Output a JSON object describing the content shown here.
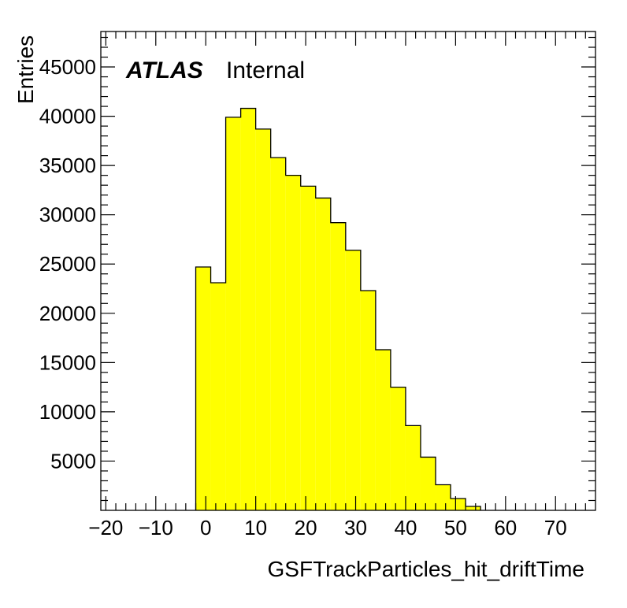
{
  "chart_data": {
    "type": "bar",
    "histogram": true,
    "bin_width": 3,
    "bins": [
      {
        "x0": -2,
        "x1": 1,
        "value": 24700
      },
      {
        "x0": 1,
        "x1": 4,
        "value": 23100
      },
      {
        "x0": 4,
        "x1": 7,
        "value": 39900
      },
      {
        "x0": 7,
        "x1": 10,
        "value": 40800
      },
      {
        "x0": 10,
        "x1": 13,
        "value": 38700
      },
      {
        "x0": 13,
        "x1": 16,
        "value": 35800
      },
      {
        "x0": 16,
        "x1": 19,
        "value": 34000
      },
      {
        "x0": 19,
        "x1": 22,
        "value": 32900
      },
      {
        "x0": 22,
        "x1": 25,
        "value": 31700
      },
      {
        "x0": 25,
        "x1": 28,
        "value": 29200
      },
      {
        "x0": 28,
        "x1": 31,
        "value": 26400
      },
      {
        "x0": 31,
        "x1": 34,
        "value": 22300
      },
      {
        "x0": 34,
        "x1": 37,
        "value": 16300
      },
      {
        "x0": 37,
        "x1": 40,
        "value": 12500
      },
      {
        "x0": 40,
        "x1": 43,
        "value": 8600
      },
      {
        "x0": 43,
        "x1": 46,
        "value": 5400
      },
      {
        "x0": 46,
        "x1": 49,
        "value": 2600
      },
      {
        "x0": 49,
        "x1": 52,
        "value": 1200
      },
      {
        "x0": 52,
        "x1": 55,
        "value": 400
      }
    ],
    "xlabel": "GSFTrackParticles_hit_driftTime",
    "ylabel": "Entries",
    "xlim": [
      -21,
      78
    ],
    "ylim": [
      0,
      48600
    ],
    "xticks": [
      -20,
      -10,
      0,
      10,
      20,
      30,
      40,
      50,
      60,
      70
    ],
    "xtick_labels": [
      "−20",
      "−10",
      "0",
      "10",
      "20",
      "30",
      "40",
      "50",
      "60",
      "70"
    ],
    "yticks": [
      5000,
      10000,
      15000,
      20000,
      25000,
      30000,
      35000,
      40000,
      45000
    ],
    "ytick_labels": [
      "5000",
      "10000",
      "15000",
      "20000",
      "25000",
      "30000",
      "35000",
      "40000",
      "45000"
    ],
    "grid": false,
    "fill_color": "#ffff00",
    "line_color": "#000000"
  },
  "label": {
    "experiment": "ATLAS",
    "status": "Internal"
  }
}
